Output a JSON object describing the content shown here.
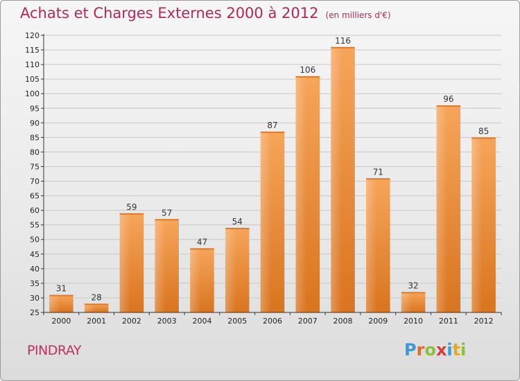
{
  "title": "Achats et Charges Externes 2000 à 2012",
  "unit": "(en milliers d'€)",
  "commune": "PINDRAY",
  "logo": {
    "letters": [
      "P",
      "r",
      "o",
      "x",
      "i",
      "t",
      "i"
    ],
    "colors": [
      "#3a9ad9",
      "#e26b2a",
      "#8bbf3a",
      "#d93a3a",
      "#3a9ad9",
      "#e2a82a",
      "#8bbf3a"
    ]
  },
  "chart_data": {
    "type": "bar",
    "categories": [
      "2000",
      "2001",
      "2002",
      "2003",
      "2004",
      "2005",
      "2006",
      "2007",
      "2008",
      "2009",
      "2010",
      "2011",
      "2012"
    ],
    "values": [
      31,
      28,
      59,
      57,
      47,
      54,
      87,
      106,
      116,
      71,
      32,
      96,
      85
    ],
    "ylim": [
      25,
      120
    ],
    "yticks": [
      25,
      30,
      35,
      40,
      45,
      50,
      55,
      60,
      65,
      70,
      75,
      80,
      85,
      90,
      95,
      100,
      105,
      110,
      115,
      120
    ],
    "grid": true,
    "bar_color": "#f0923a"
  }
}
